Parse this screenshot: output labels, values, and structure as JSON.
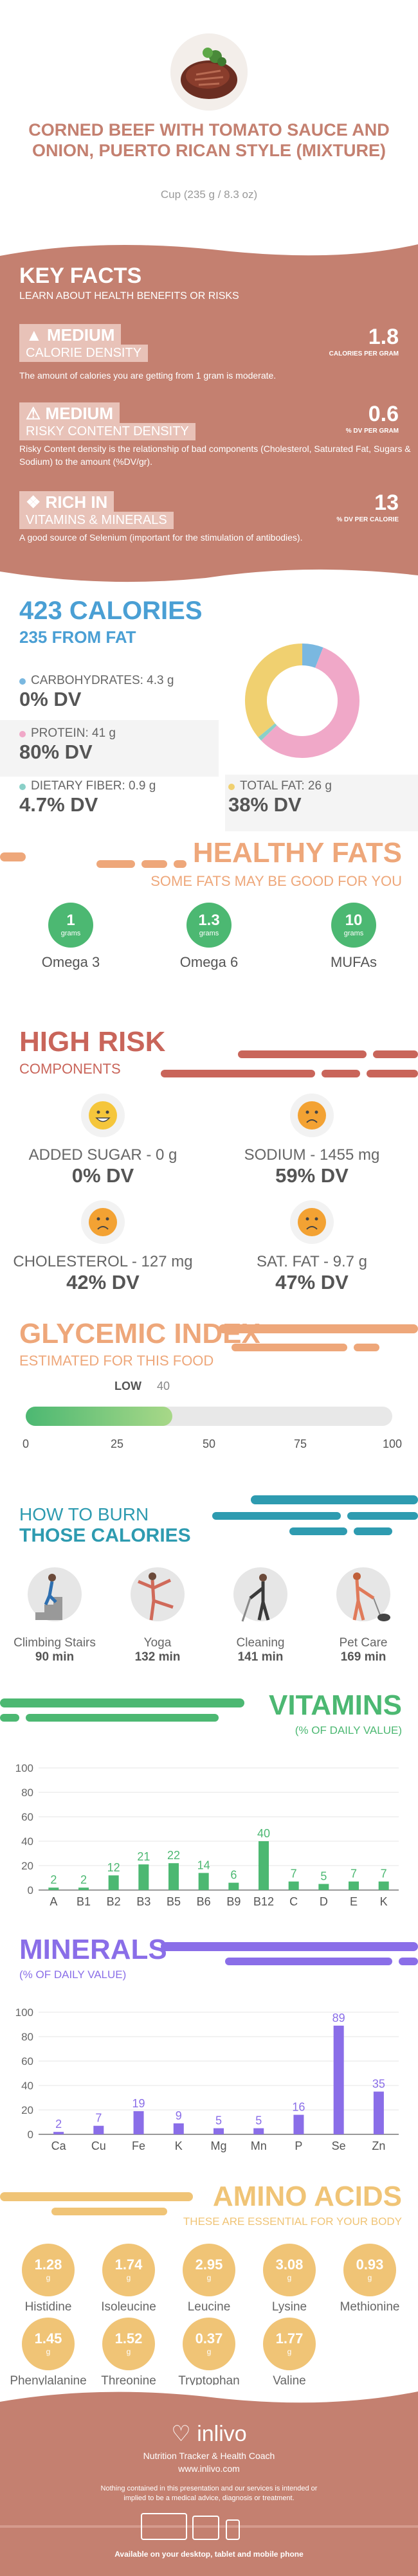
{
  "header": {
    "title": "CORNED BEEF WITH TOMATO SAUCE AND ONION, PUERTO RICAN STYLE (MIXTURE)",
    "serving": "Cup (235 g / 8.3 oz)"
  },
  "key_facts": {
    "title": "KEY FACTS",
    "subtitle": "LEARN ABOUT HEALTH BENEFITS OR RISKS",
    "items": [
      {
        "level": "MEDIUM",
        "name": "CALORIE DENSITY",
        "value": "1.8",
        "unit": "CALORIES PER GRAM",
        "desc": "The amount of calories you are getting from 1 gram is moderate."
      },
      {
        "level": "MEDIUM",
        "name": "RISKY CONTENT DENSITY",
        "value": "0.6",
        "unit": "% DV PER GRAM",
        "desc": "Risky Content density is the relationship of bad components (Cholesterol, Saturated Fat, Sugars & Sodium) to the amount (%DV/gr)."
      },
      {
        "level": "RICH IN",
        "name": "VITAMINS & MINERALS",
        "value": "13",
        "unit": "% DV PER CALORIE",
        "desc": "A good source of Selenium (important for the stimulation of antibodies)."
      }
    ]
  },
  "calories": {
    "title": "423 CALORIES",
    "from_fat": "235 FROM FAT",
    "macros": [
      {
        "label": "CARBOHYDRATES: 4.3 g",
        "dv": "0% DV",
        "color": "#7ab8e0"
      },
      {
        "label": "PROTEIN: 41 g",
        "dv": "80% DV",
        "color": "#f0a8c8"
      },
      {
        "label": "DIETARY FIBER: 0.9 g",
        "dv": "4.7% DV",
        "color": "#8ad0c8"
      },
      {
        "label": "TOTAL FAT: 26 g",
        "dv": "38% DV",
        "color": "#f0d070"
      }
    ],
    "donut": [
      {
        "name": "carbs",
        "value": 4.3,
        "color": "#7ab8e0"
      },
      {
        "name": "protein",
        "value": 41,
        "color": "#f0a8c8"
      },
      {
        "name": "fiber",
        "value": 0.9,
        "color": "#8ad0c8"
      },
      {
        "name": "fat",
        "value": 26,
        "color": "#f0d070"
      }
    ]
  },
  "healthy_fats": {
    "title": "HEALTHY FATS",
    "subtitle": "SOME FATS MAY BE GOOD FOR YOU",
    "unit": "grams",
    "items": [
      {
        "value": "1",
        "label": "Omega 3"
      },
      {
        "value": "1.3",
        "label": "Omega 6"
      },
      {
        "value": "10",
        "label": "MUFAs"
      }
    ]
  },
  "high_risk": {
    "title": "HIGH RISK",
    "subtitle": "COMPONENTS",
    "items": [
      {
        "label": "ADDED SUGAR - 0 g",
        "dv": "0% DV",
        "mood": "happy"
      },
      {
        "label": "SODIUM - 1455 mg",
        "dv": "59% DV",
        "mood": "sad"
      },
      {
        "label": "CHOLESTEROL - 127 mg",
        "dv": "42% DV",
        "mood": "sad"
      },
      {
        "label": "SAT. FAT - 9.7 g",
        "dv": "47% DV",
        "mood": "sad"
      }
    ]
  },
  "glycemic": {
    "title": "GLYCEMIC INDEX",
    "subtitle": "ESTIMATED FOR THIS FOOD",
    "level": "LOW",
    "value": 40,
    "value_label": "40",
    "ticks": [
      "0",
      "25",
      "50",
      "75",
      "100"
    ]
  },
  "burn": {
    "title1": "HOW TO BURN",
    "title2": "THOSE CALORIES",
    "items": [
      {
        "name": "Climbing Stairs",
        "minutes": "90 min"
      },
      {
        "name": "Yoga",
        "minutes": "132 min"
      },
      {
        "name": "Cleaning",
        "minutes": "141 min"
      },
      {
        "name": "Pet Care",
        "minutes": "169 min"
      }
    ]
  },
  "vitamins": {
    "title": "VITAMINS",
    "subtitle": "(% OF DAILY VALUE)",
    "y_ticks": [
      "100",
      "80",
      "60",
      "40",
      "20",
      "0"
    ]
  },
  "minerals": {
    "title": "MINERALS",
    "subtitle": "(% OF DAILY VALUE)",
    "y_ticks": [
      "100",
      "80",
      "60",
      "40",
      "20",
      "0"
    ]
  },
  "chart_data": [
    {
      "type": "bar",
      "categories": [
        "A",
        "B1",
        "B2",
        "B3",
        "B5",
        "B6",
        "B9",
        "B12",
        "C",
        "D",
        "E",
        "K"
      ],
      "values": [
        2,
        2,
        12,
        21,
        22,
        14,
        6,
        40,
        7,
        5,
        7,
        7
      ],
      "value_labels": [
        "2",
        "2",
        "12",
        "21",
        "22",
        "14",
        "6",
        "40",
        "7",
        "5",
        "7",
        "7"
      ],
      "ylim": [
        0,
        100
      ],
      "color": "#4cb872"
    },
    {
      "type": "bar",
      "categories": [
        "Ca",
        "Cu",
        "Fe",
        "K",
        "Mg",
        "Mn",
        "P",
        "Se",
        "Zn"
      ],
      "values": [
        2,
        7,
        19,
        9,
        5,
        5,
        16,
        89,
        35
      ],
      "value_labels": [
        "2",
        "7",
        "19",
        "9",
        "5",
        "5",
        "16",
        "89",
        "35"
      ],
      "ylim": [
        0,
        100
      ],
      "color": "#8a6ee8"
    }
  ],
  "amino": {
    "title": "AMINO ACIDS",
    "subtitle": "THESE ARE ESSENTIAL FOR YOUR BODY",
    "unit": "g",
    "items": [
      {
        "value": "1.28",
        "name": "Histidine"
      },
      {
        "value": "1.74",
        "name": "Isoleucine"
      },
      {
        "value": "2.95",
        "name": "Leucine"
      },
      {
        "value": "3.08",
        "name": "Lysine"
      },
      {
        "value": "0.93",
        "name": "Methionine"
      },
      {
        "value": "1.45",
        "name": "Phenylalanine"
      },
      {
        "value": "1.52",
        "name": "Threonine"
      },
      {
        "value": "0.37",
        "name": "Tryptophan"
      },
      {
        "value": "1.77",
        "name": "Valine"
      }
    ]
  },
  "footer": {
    "brand": "inlivo",
    "tagline": "Nutrition Tracker & Health Coach",
    "url": "www.inlivo.com",
    "disclaimer": "Nothing contained in this presentation and our services is intended or implied to be a medical advice, diagnosis or treatment.",
    "available": "Available on your desktop, tablet and mobile phone"
  }
}
